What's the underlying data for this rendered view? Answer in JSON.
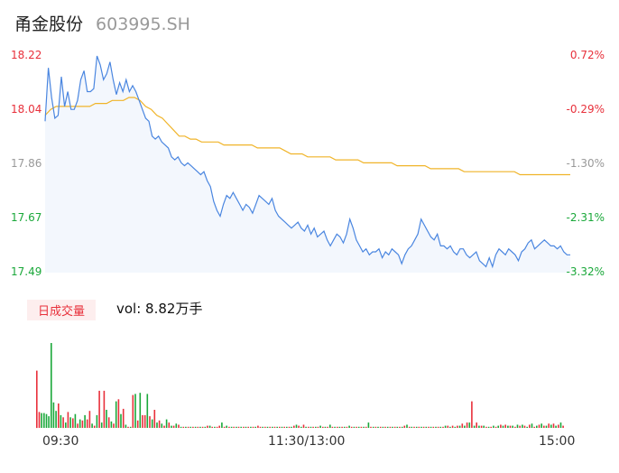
{
  "header": {
    "name": "甬金股份",
    "code": "603995.SH"
  },
  "colors": {
    "up": "#e8303b",
    "down": "#1aa83a",
    "price": "#4a86e0",
    "avg": "#f0b429",
    "neutral": "#999999"
  },
  "volume_badge": "日成交量",
  "volume_text": "vol: 8.82万手",
  "chart_data": [
    {
      "type": "line",
      "title": "",
      "x_ticks": [
        "09:30",
        "11:30/13:00",
        "15:00"
      ],
      "y_ticks_left": [
        "18.22",
        "18.04",
        "17.86",
        "17.67",
        "17.49"
      ],
      "y_ticks_right": [
        "0.72%",
        "-0.29%",
        "-1.30%",
        "-2.31%",
        "-3.32%"
      ],
      "ylim": [
        17.49,
        18.22
      ],
      "series": [
        {
          "values": [
            18.0,
            18.18,
            18.08,
            18.01,
            18.02,
            18.15,
            18.05,
            18.1,
            18.04,
            18.04,
            18.07,
            18.14,
            18.17,
            18.1,
            18.1,
            18.11,
            18.22,
            18.19,
            18.14,
            18.16,
            18.2,
            18.14,
            18.09,
            18.13,
            18.1,
            18.14,
            18.1,
            18.12,
            18.1,
            18.07,
            18.04,
            18.01,
            18.0,
            17.95,
            17.94,
            17.95,
            17.93,
            17.92,
            17.91,
            17.88,
            17.87,
            17.88,
            17.86,
            17.85,
            17.86,
            17.85,
            17.84,
            17.83,
            17.82,
            17.83,
            17.8,
            17.78,
            17.73,
            17.7,
            17.68,
            17.72,
            17.75,
            17.74,
            17.76,
            17.74,
            17.72,
            17.7,
            17.72,
            17.71,
            17.69,
            17.72,
            17.75,
            17.74,
            17.73,
            17.72,
            17.74,
            17.7,
            17.68,
            17.67,
            17.66,
            17.65,
            17.64,
            17.65,
            17.66,
            17.64,
            17.63,
            17.65,
            17.62,
            17.64,
            17.61,
            17.62,
            17.63,
            17.6,
            17.58,
            17.6,
            17.62,
            17.61,
            17.59,
            17.62,
            17.67,
            17.64,
            17.6,
            17.58,
            17.56,
            17.57,
            17.55,
            17.56,
            17.56,
            17.57,
            17.54,
            17.56,
            17.55,
            17.57,
            17.56,
            17.55,
            17.52,
            17.55,
            17.57,
            17.58,
            17.6,
            17.62,
            17.67,
            17.65,
            17.63,
            17.61,
            17.6,
            17.62,
            17.58,
            17.58,
            17.57,
            17.58,
            17.56,
            17.55,
            17.57,
            17.57,
            17.55,
            17.54,
            17.55,
            17.56,
            17.53,
            17.52,
            17.51,
            17.54,
            17.51,
            17.55,
            17.57,
            17.56,
            17.55,
            17.57,
            17.56,
            17.55,
            17.53,
            17.56,
            17.57,
            17.59,
            17.6,
            17.57,
            17.58,
            17.59,
            17.6,
            17.59,
            17.58,
            17.58,
            17.57,
            17.58,
            17.56,
            17.55,
            17.55
          ]
        },
        {
          "values": [
            18.02,
            18.04,
            18.05,
            18.05,
            18.05,
            18.05,
            18.05,
            18.05,
            18.05,
            18.06,
            18.06,
            18.06,
            18.07,
            18.07,
            18.07,
            18.08,
            18.08,
            18.07,
            18.05,
            18.04,
            18.02,
            18.01,
            17.99,
            17.97,
            17.95,
            17.95,
            17.94,
            17.94,
            17.93,
            17.93,
            17.93,
            17.93,
            17.92,
            17.92,
            17.92,
            17.92,
            17.92,
            17.92,
            17.91,
            17.91,
            17.91,
            17.91,
            17.91,
            17.9,
            17.89,
            17.89,
            17.89,
            17.88,
            17.88,
            17.88,
            17.88,
            17.88,
            17.87,
            17.87,
            17.87,
            17.87,
            17.87,
            17.86,
            17.86,
            17.86,
            17.86,
            17.86,
            17.86,
            17.85,
            17.85,
            17.85,
            17.85,
            17.85,
            17.85,
            17.84,
            17.84,
            17.84,
            17.84,
            17.84,
            17.84,
            17.83,
            17.83,
            17.83,
            17.83,
            17.83,
            17.83,
            17.83,
            17.83,
            17.83,
            17.83,
            17.82,
            17.82,
            17.82,
            17.82,
            17.82,
            17.82,
            17.82,
            17.82,
            17.82,
            17.82
          ]
        }
      ]
    },
    {
      "type": "bar",
      "title": "成交量",
      "values": [
        54,
        15,
        14,
        14,
        13,
        11,
        80,
        24,
        16,
        23,
        12,
        10,
        5,
        15,
        10,
        9,
        13,
        4,
        8,
        7,
        12,
        8,
        16,
        4,
        2,
        12,
        35,
        5,
        35,
        17,
        10,
        6,
        4,
        25,
        27,
        13,
        18,
        3,
        1,
        1,
        31,
        32,
        7,
        33,
        12,
        12,
        32,
        11,
        8,
        17,
        5,
        7,
        4,
        2,
        8,
        5,
        2,
        2,
        4,
        3,
        1,
        1,
        1,
        1,
        1,
        1,
        1,
        1,
        1,
        1,
        1,
        2,
        2,
        1,
        1,
        1,
        2,
        5,
        1,
        2,
        1,
        1,
        1,
        1,
        1,
        1,
        1,
        1,
        1,
        1,
        1,
        1,
        2,
        1,
        1,
        1,
        1,
        1,
        1,
        1,
        1,
        1,
        1,
        1,
        1,
        1,
        1,
        2,
        3,
        2,
        1,
        3,
        1,
        1,
        1,
        1,
        1,
        1,
        2,
        1,
        1,
        1,
        3,
        1,
        1,
        1,
        1,
        1,
        1,
        1,
        2,
        1,
        1,
        1,
        1,
        1,
        1,
        1,
        5,
        1,
        1,
        1,
        1,
        1,
        1,
        1,
        1,
        1,
        1,
        1,
        1,
        1,
        1,
        2,
        3,
        1,
        1,
        1,
        1,
        1,
        1,
        1,
        1,
        1,
        1,
        1,
        1,
        1,
        1,
        1,
        2,
        2,
        1,
        2,
        1,
        2,
        2,
        4,
        2,
        5,
        5,
        25,
        2,
        5,
        2,
        2,
        2,
        1,
        1,
        1,
        2,
        1,
        2,
        3,
        2,
        3,
        2,
        2,
        2,
        1,
        3,
        2,
        3,
        2,
        1,
        3,
        4,
        1,
        2,
        3,
        4,
        2,
        2,
        4,
        3,
        4,
        2,
        3,
        5,
        2
      ],
      "directions": "rrgggggggrgrgrgrgrgrgrrgrgrgrgrgrgrgrgrgrgrgrrgrgrgrgrgrgrgrgrgrgrgrgrgrgrgrrgrgrgrgrgrgrgrgrrgrgrgrgrgrgrgrgrgrgrgrgrgrgrgrgrgrgrgrgrgrgrgrgrgrgrgrgrgrgrgrgrgrgrgrgrgrgrgrgrgrgrgrgrgrgrgrgrgrgrgrgrgrgrgrgrgrgrgrgrgrgrgrgrgrgrgrgrgrgrgrgrgrgrgrgrgrgrgrgrgrgr"
    }
  ]
}
